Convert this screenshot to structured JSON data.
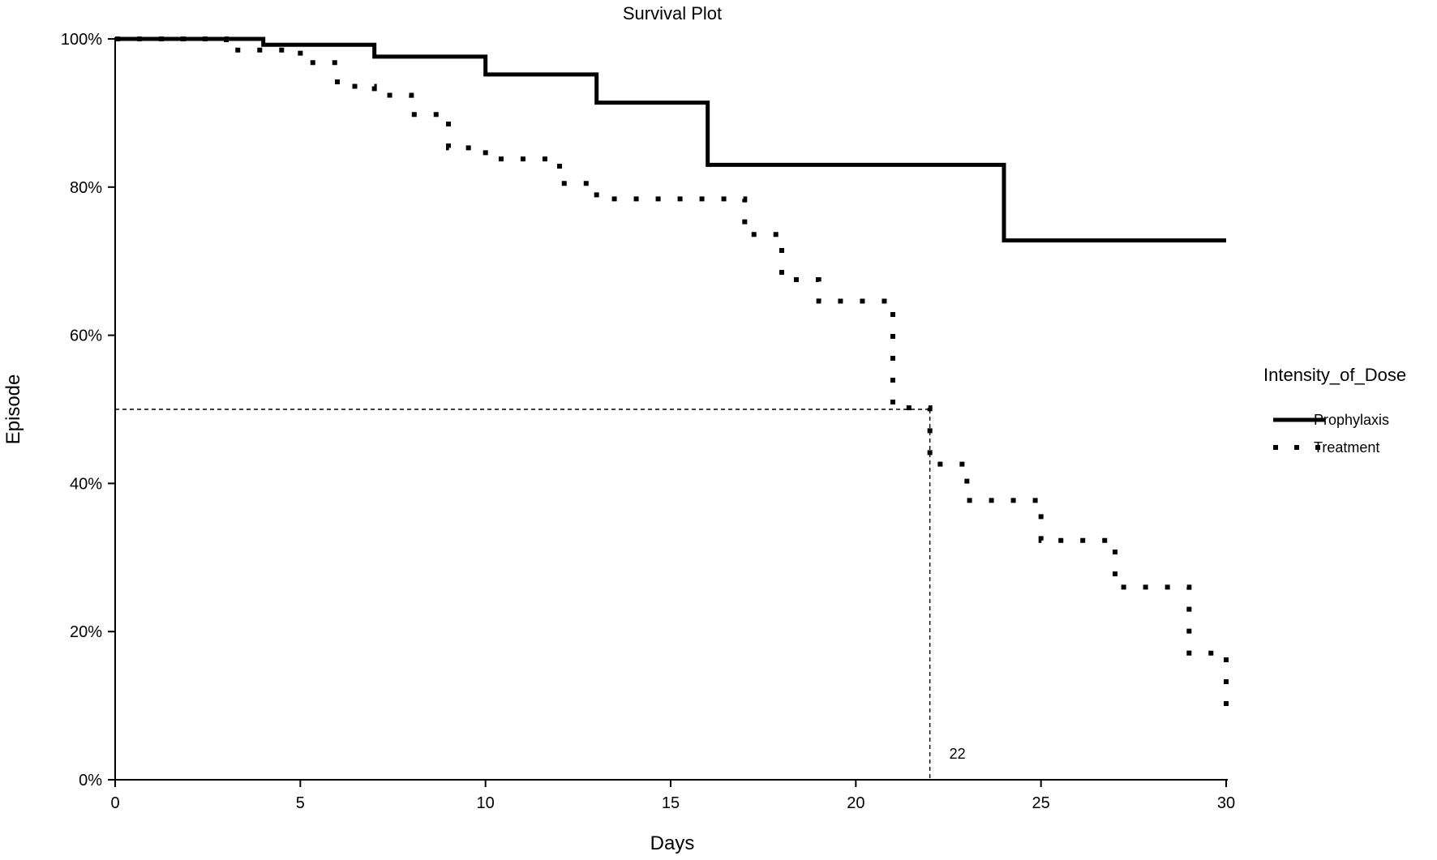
{
  "chart_data": {
    "type": "line",
    "title": "Survival Plot",
    "xlabel": "Days",
    "ylabel": "Episode",
    "xlim": [
      0,
      30
    ],
    "ylim": [
      0,
      100
    ],
    "x_ticks": [
      0,
      5,
      10,
      15,
      20,
      25,
      30
    ],
    "x_tick_labels": [
      "0",
      "5",
      "10",
      "15",
      "20",
      "25",
      "30"
    ],
    "y_ticks": [
      0,
      20,
      40,
      60,
      80,
      100
    ],
    "y_tick_labels": [
      "0%",
      "20%",
      "40%",
      "60%",
      "80%",
      "100%"
    ],
    "grid": false,
    "legend": {
      "title": "Intensity_of_Dose",
      "position": "right"
    },
    "series": [
      {
        "name": "Prophylaxis",
        "style": "solid",
        "steps": [
          {
            "x": 0,
            "y": 100
          },
          {
            "x": 4,
            "y": 99.2
          },
          {
            "x": 7,
            "y": 97.6
          },
          {
            "x": 10,
            "y": 95.2
          },
          {
            "x": 13,
            "y": 91.4
          },
          {
            "x": 16,
            "y": 83.0
          },
          {
            "x": 24,
            "y": 72.8
          }
        ],
        "end_x": 30
      },
      {
        "name": "Treatment",
        "style": "dotted",
        "steps": [
          {
            "x": 0,
            "y": 100
          },
          {
            "x": 3,
            "y": 98.5
          },
          {
            "x": 5,
            "y": 96.8
          },
          {
            "x": 6,
            "y": 93.6
          },
          {
            "x": 7,
            "y": 92.4
          },
          {
            "x": 8,
            "y": 89.8
          },
          {
            "x": 9,
            "y": 85.3
          },
          {
            "x": 10,
            "y": 83.8
          },
          {
            "x": 12,
            "y": 80.5
          },
          {
            "x": 13,
            "y": 78.4
          },
          {
            "x": 17,
            "y": 73.6
          },
          {
            "x": 18,
            "y": 67.5
          },
          {
            "x": 19,
            "y": 64.6
          },
          {
            "x": 21,
            "y": 50.2
          },
          {
            "x": 22,
            "y": 42.6
          },
          {
            "x": 23,
            "y": 37.7
          },
          {
            "x": 25,
            "y": 32.3
          },
          {
            "x": 27,
            "y": 26.0
          },
          {
            "x": 29,
            "y": 17.1
          },
          {
            "x": 30,
            "y": 9.7
          }
        ],
        "end_x": 30
      }
    ],
    "reference_lines": {
      "median_y": 50,
      "median_x": 22,
      "label": "22"
    }
  }
}
